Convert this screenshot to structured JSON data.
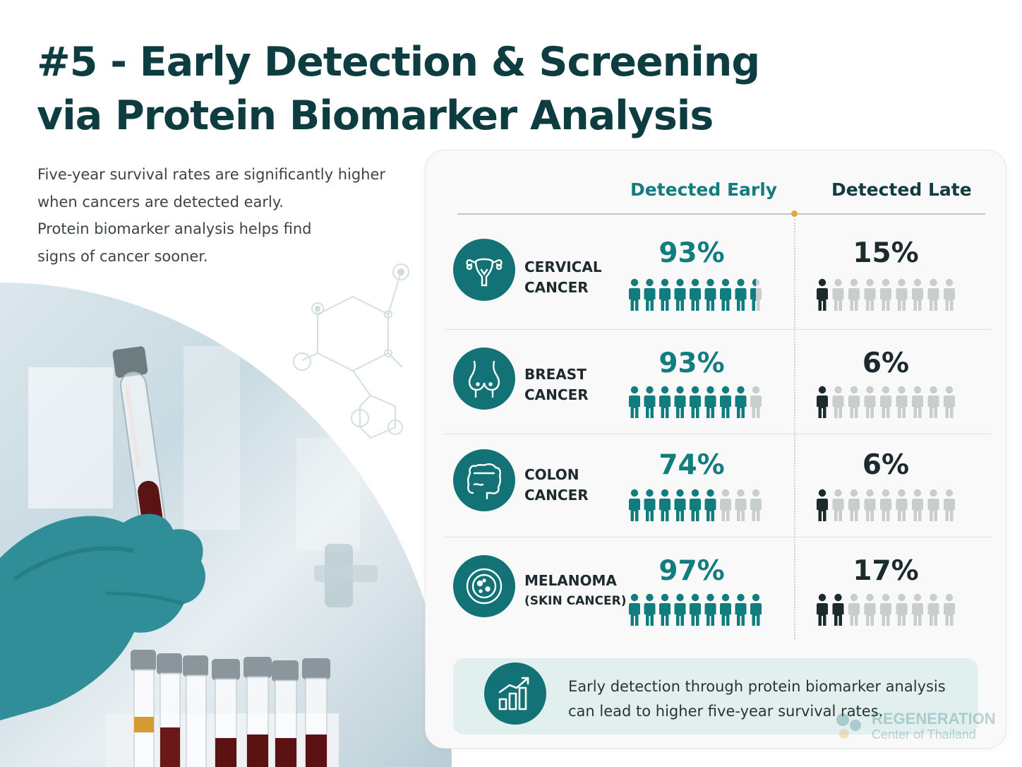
{
  "title": {
    "line1": "#5 - Early Detection & Screening",
    "line2": "via Protein Biomarker Analysis"
  },
  "intro": {
    "line1": "Five-year survival rates are significantly higher",
    "line2": "when cancers are detected early.",
    "line3": "Protein biomarker analysis helps find",
    "line4": "signs of cancer sooner."
  },
  "columns": {
    "early": "Detected Early",
    "late": "Detected Late"
  },
  "colors": {
    "accent": "#117d7f",
    "dark": "#1c2a2d",
    "inactive": "#c8cdcd",
    "highlight": "#e8a53a"
  },
  "rows": [
    {
      "icon": "uterus-icon",
      "label_line1": "CERVICAL",
      "label_line2": "CANCER",
      "early_pct": "93%",
      "early_filled": 8.5,
      "late_pct": "15%",
      "late_filled": 1
    },
    {
      "icon": "breast-icon",
      "label_line1": "BREAST",
      "label_line2": "CANCER",
      "early_pct": "93%",
      "early_filled": 8,
      "late_pct": "6%",
      "late_filled": 1
    },
    {
      "icon": "colon-icon",
      "label_line1": "COLON",
      "label_line2": "CANCER",
      "early_pct": "74%",
      "early_filled": 6,
      "late_pct": "6%",
      "late_filled": 1
    },
    {
      "icon": "skin-cell-icon",
      "label_line1": "MELANOMA",
      "label_line2": "(SKIN CANCER)",
      "early_pct": "97%",
      "early_filled": 9,
      "late_pct": "17%",
      "late_filled": 2
    }
  ],
  "footer": {
    "icon": "growth-chart-icon",
    "line1": "Early detection through protein biomarker analysis",
    "line2": "can lead to higher five-year survival rates."
  },
  "logo": {
    "line1": "REGENERATION",
    "line2": "Center of Thailand"
  }
}
